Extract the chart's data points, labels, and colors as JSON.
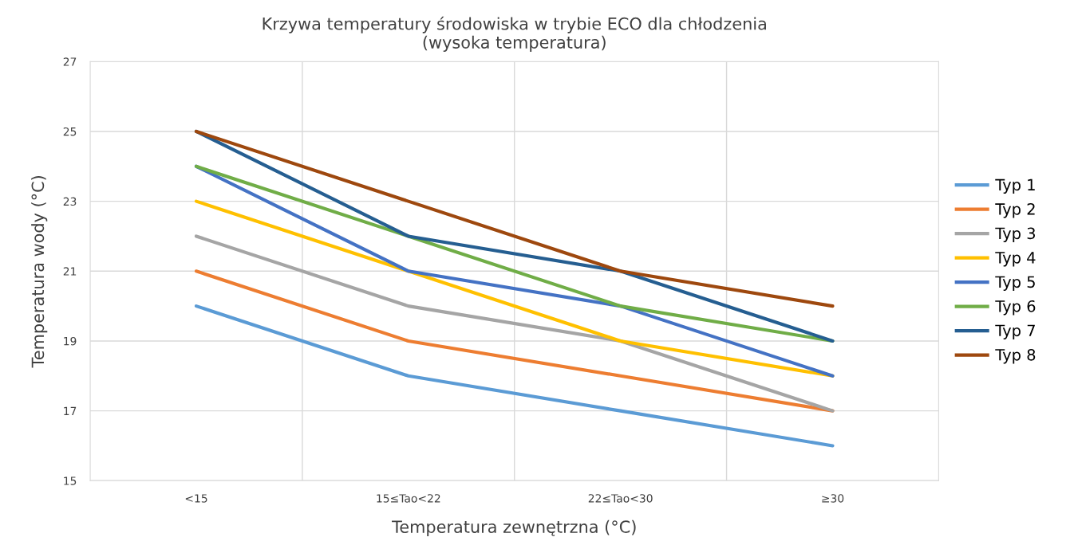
{
  "chart_data": {
    "type": "line",
    "title": "Krzywa temperatury środowiska w trybie ECO dla chłodzenia\n(wysoka temperatura)",
    "xlabel": "Temperatura zewnętrzna (°C)",
    "ylabel": "Temperatura wody (°C)",
    "categories": [
      "<15",
      "15≤Tao<22",
      "22≤Tao<30",
      "≥30"
    ],
    "series": [
      {
        "name": "Typ 1",
        "color": "#5b9bd5",
        "values": [
          20,
          18,
          17,
          16
        ]
      },
      {
        "name": "Typ 2",
        "color": "#ed7d31",
        "values": [
          21,
          19,
          18,
          17
        ]
      },
      {
        "name": "Typ 3",
        "color": "#a5a5a5",
        "values": [
          22,
          20,
          19,
          17
        ]
      },
      {
        "name": "Typ 4",
        "color": "#ffc000",
        "values": [
          23,
          21,
          19,
          18
        ]
      },
      {
        "name": "Typ 5",
        "color": "#4472c4",
        "values": [
          24,
          21,
          20,
          18
        ]
      },
      {
        "name": "Typ 6",
        "color": "#70ad47",
        "values": [
          24,
          22,
          20,
          19
        ]
      },
      {
        "name": "Typ 7",
        "color": "#255e91",
        "values": [
          25,
          22,
          21,
          19
        ]
      },
      {
        "name": "Typ 8",
        "color": "#9e480e",
        "values": [
          25,
          23,
          21,
          20
        ]
      }
    ],
    "ylim": [
      15,
      27
    ],
    "yticks": [
      15,
      17,
      19,
      21,
      23,
      25,
      27
    ],
    "grid": true,
    "legend": "right",
    "marker": "none",
    "line_style": "solid"
  }
}
